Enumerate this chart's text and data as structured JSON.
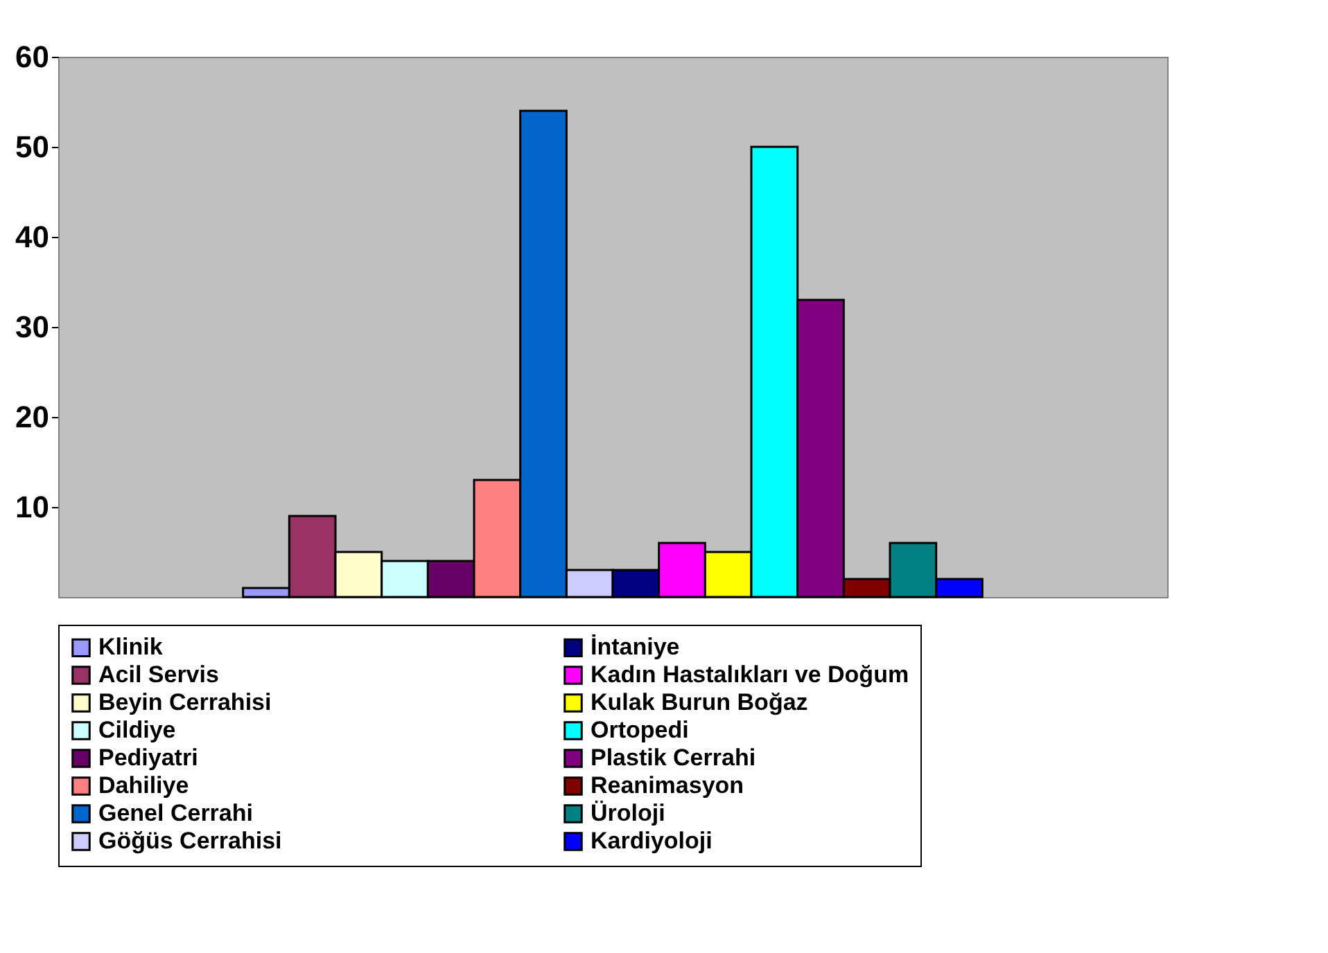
{
  "chart_data": {
    "type": "bar",
    "categories": [
      null
    ],
    "series": [
      {
        "name": "Klinik",
        "color": "#9999ff",
        "values": [
          1
        ]
      },
      {
        "name": "Acil Servis",
        "color": "#993366",
        "values": [
          9
        ]
      },
      {
        "name": "Beyin Cerrahisi",
        "color": "#ffffcc",
        "values": [
          5
        ]
      },
      {
        "name": "Cildiye",
        "color": "#ccffff",
        "values": [
          4
        ]
      },
      {
        "name": "Pediyatri",
        "color": "#660066",
        "values": [
          4
        ]
      },
      {
        "name": "Dahiliye",
        "color": "#ff8080",
        "values": [
          13
        ]
      },
      {
        "name": "Genel Cerrahi",
        "color": "#0066cc",
        "values": [
          54
        ]
      },
      {
        "name": "Göğüs Cerrahisi",
        "color": "#ccccff",
        "values": [
          3
        ]
      },
      {
        "name": "İntaniye",
        "color": "#000080",
        "values": [
          3
        ]
      },
      {
        "name": "Kadın Hastalıkları ve Doğum",
        "color": "#ff00ff",
        "values": [
          6
        ]
      },
      {
        "name": "Kulak Burun Boğaz",
        "color": "#ffff00",
        "values": [
          5
        ]
      },
      {
        "name": "Ortopedi",
        "color": "#00ffff",
        "values": [
          50
        ]
      },
      {
        "name": "Plastik Cerrahi",
        "color": "#800080",
        "values": [
          33
        ]
      },
      {
        "name": "Reanimasyon",
        "color": "#800000",
        "values": [
          2
        ]
      },
      {
        "name": "Üroloji",
        "color": "#008080",
        "values": [
          6
        ]
      },
      {
        "name": "Kardiyoloji",
        "color": "#0000ff",
        "values": [
          2
        ]
      }
    ],
    "ylim": [
      0,
      60
    ],
    "yticks": [
      10,
      20,
      30,
      40,
      50,
      60
    ],
    "grid": false,
    "legend": "bottom"
  }
}
